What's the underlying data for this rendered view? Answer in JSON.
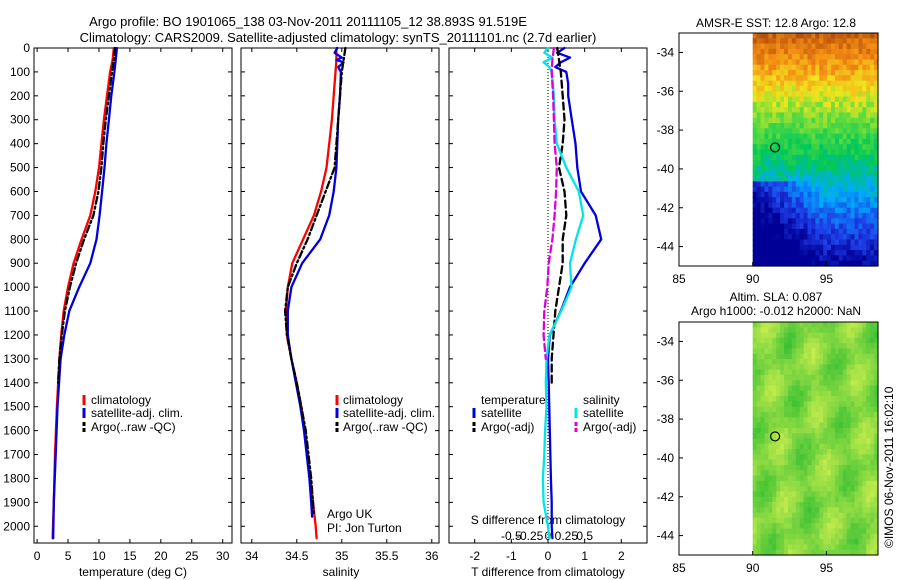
{
  "header": {
    "line1": "Argo profile: BO 1901065_138 03-Nov-2011 20111105_12 38.893S 91.519E",
    "line2": "Climatology: CARS2009. Satellite-adjusted climatology: synTS_20111101.nc (2.7d earlier)"
  },
  "colors": {
    "climatology": "#ff0000",
    "satellite": "#0000dd",
    "argo": "#000000",
    "cyan": "#00e5e5",
    "magenta": "#dd00dd"
  },
  "chart_data": [
    {
      "type": "line",
      "title": "",
      "xlabel": "temperature (deg C)",
      "ylabel": "",
      "xlim": [
        -0.5,
        31.5
      ],
      "ylim": [
        2070,
        0
      ],
      "xticks": [
        0,
        5,
        10,
        15,
        20,
        25,
        30
      ],
      "yticks": [
        0,
        100,
        200,
        300,
        400,
        500,
        600,
        700,
        800,
        900,
        1000,
        1100,
        1200,
        1300,
        1400,
        1500,
        1600,
        1700,
        1800,
        1900,
        2000
      ],
      "legend": [
        "climatology",
        "satellite-adj. clim.",
        "Argo(..raw -QC)"
      ],
      "series": [
        {
          "name": "climatology",
          "style": "solid",
          "color_key": "climatology",
          "depth": [
            0,
            50,
            100,
            200,
            300,
            400,
            500,
            600,
            700,
            800,
            900,
            1000,
            1100,
            1200,
            1300,
            1500,
            1700,
            1900,
            2050
          ],
          "values": [
            12.4,
            12.2,
            11.8,
            11.3,
            10.8,
            10.4,
            10.0,
            9.4,
            8.6,
            7.2,
            5.9,
            5.0,
            4.3,
            3.9,
            3.6,
            3.2,
            2.9,
            2.7,
            2.5
          ]
        },
        {
          "name": "satellite-adj. clim.",
          "style": "solid",
          "color_key": "satellite",
          "depth": [
            0,
            50,
            100,
            200,
            300,
            400,
            500,
            600,
            700,
            800,
            900,
            1000,
            1100,
            1200,
            1300,
            1500,
            1700,
            1900,
            2050
          ],
          "values": [
            12.9,
            12.7,
            12.5,
            12.0,
            11.6,
            11.2,
            10.9,
            10.5,
            10.1,
            9.6,
            8.6,
            6.8,
            5.2,
            4.4,
            3.8,
            3.3,
            3.0,
            2.7,
            2.6
          ]
        },
        {
          "name": "Argo(..raw -QC)",
          "style": "dashdot",
          "color_key": "argo",
          "depth": [
            0,
            50,
            100,
            200,
            300,
            400,
            500,
            600,
            700,
            800,
            900,
            1000,
            1100,
            1200,
            1300,
            1400
          ],
          "values": [
            12.6,
            12.4,
            12.1,
            11.6,
            11.1,
            10.7,
            10.4,
            9.9,
            9.1,
            7.6,
            6.3,
            5.3,
            4.5,
            4.0,
            3.6,
            3.4
          ]
        }
      ]
    },
    {
      "type": "line",
      "title": "",
      "xlabel": "salinity",
      "ylabel": "",
      "xlim": [
        33.88,
        36.08
      ],
      "ylim": [
        2070,
        0
      ],
      "xticks": [
        34,
        34.5,
        35,
        35.5,
        36
      ],
      "legend": [
        "climatology",
        "satellite-adj. clim.",
        "Argo(..raw -QC)"
      ],
      "annotation": [
        "Argo UK",
        "PI: Jon Turton"
      ],
      "series": [
        {
          "name": "climatology",
          "style": "solid",
          "color_key": "climatology",
          "depth": [
            0,
            50,
            100,
            200,
            300,
            400,
            500,
            600,
            700,
            800,
            900,
            1000,
            1100,
            1200,
            1300,
            1400,
            1500,
            1600,
            1700,
            1800,
            1900,
            2000,
            2050
          ],
          "values": [
            34.94,
            34.94,
            34.93,
            34.91,
            34.89,
            34.86,
            34.83,
            34.77,
            34.69,
            34.57,
            34.45,
            34.4,
            34.38,
            34.39,
            34.44,
            34.5,
            34.55,
            34.59,
            34.62,
            34.65,
            34.68,
            34.71,
            34.72
          ]
        },
        {
          "name": "satellite-adj. clim.",
          "style": "solid",
          "color_key": "satellite",
          "depth": [
            0,
            20,
            40,
            50,
            60,
            80,
            100,
            200,
            300,
            400,
            500,
            600,
            700,
            800,
            900,
            1000,
            1100,
            1200,
            1300,
            1400,
            1500,
            1600,
            1700,
            1800,
            1900,
            1960
          ],
          "values": [
            34.95,
            34.92,
            35.0,
            34.94,
            35.02,
            34.96,
            34.99,
            34.98,
            34.96,
            34.95,
            34.94,
            34.91,
            34.86,
            34.76,
            34.56,
            34.44,
            34.4,
            34.4,
            34.44,
            34.49,
            34.54,
            34.58,
            34.61,
            34.64,
            34.66,
            34.67
          ]
        },
        {
          "name": "Argo(..raw -QC)",
          "style": "dashdot",
          "color_key": "argo",
          "depth": [
            0,
            50,
            100,
            200,
            300,
            400,
            500,
            600,
            700,
            800,
            900,
            1000,
            1100,
            1200,
            1300,
            1400,
            1500,
            1600,
            1700,
            1800,
            1900,
            1950
          ],
          "values": [
            35.04,
            35.02,
            35.0,
            34.98,
            34.96,
            34.94,
            34.92,
            34.82,
            34.72,
            34.62,
            34.5,
            34.4,
            34.37,
            34.39,
            34.44,
            34.5,
            34.55,
            34.6,
            34.63,
            34.66,
            34.68,
            34.69
          ]
        }
      ]
    },
    {
      "type": "line",
      "title": "",
      "xlabel": "T difference from climatology",
      "xlabel_top": "S difference from climatology",
      "ylabel": "",
      "xlim": [
        -2.7,
        2.7
      ],
      "ylim": [
        2070,
        0
      ],
      "xticks": [
        -2,
        -1,
        0,
        1,
        2
      ],
      "xtick_labels": [
        "-2",
        "-1",
        "0",
        "1",
        "2"
      ],
      "sticks": [
        -0.5,
        -0.25,
        0,
        0.25,
        0.5
      ],
      "stick_labels": [
        "-0.5",
        "-0.25",
        "0",
        "0.25",
        "0.5"
      ],
      "legend_titles": [
        "temperature",
        "salinity"
      ],
      "legend": [
        "satellite",
        "Argo(-adj)",
        "satellite",
        "Argo(-adj)"
      ],
      "series": [
        {
          "name": "temperature satellite",
          "style": "solid",
          "color_key": "satellite",
          "depth": [
            0,
            20,
            40,
            60,
            80,
            100,
            150,
            200,
            300,
            400,
            500,
            600,
            700,
            800,
            900,
            1000,
            1100,
            1200,
            1300,
            1400,
            1600,
            1800,
            1900,
            2000,
            2050
          ],
          "values": [
            0.45,
            0.25,
            0.6,
            0.35,
            0.2,
            0.5,
            0.55,
            0.55,
            0.65,
            0.75,
            0.8,
            0.9,
            1.3,
            1.45,
            1.0,
            0.6,
            0.35,
            0.05,
            0.0,
            0.02,
            0.05,
            0.08,
            0.1,
            0.1,
            0.12
          ]
        },
        {
          "name": "temperature Argo(-adj)",
          "style": "dashed",
          "color_key": "argo",
          "depth": [
            0,
            50,
            100,
            200,
            300,
            400,
            500,
            600,
            700,
            800,
            900,
            1000,
            1100,
            1200,
            1300,
            1400
          ],
          "values": [
            0.25,
            0.3,
            0.35,
            0.4,
            0.45,
            0.4,
            0.3,
            0.45,
            0.5,
            0.4,
            0.4,
            0.3,
            0.2,
            0.15,
            0.1,
            0.1
          ]
        },
        {
          "name": "salinity satellite",
          "style": "solid",
          "color_key": "cyan",
          "depth": [
            0,
            20,
            40,
            60,
            80,
            100,
            200,
            300,
            400,
            500,
            600,
            700,
            800,
            900,
            1000,
            1100,
            1200,
            1300,
            1400,
            1500,
            1600,
            1700,
            1800,
            1900,
            2000,
            2050
          ],
          "values": [
            0.0,
            -0.05,
            0.06,
            -0.06,
            0.02,
            0.05,
            0.08,
            0.09,
            0.12,
            0.25,
            0.42,
            0.48,
            0.38,
            0.3,
            0.32,
            0.18,
            0.02,
            -0.02,
            -0.03,
            -0.02,
            -0.04,
            -0.05,
            -0.07,
            -0.06,
            0.0,
            0.02
          ]
        },
        {
          "name": "salinity Argo(-adj)",
          "style": "dashed",
          "color_key": "magenta",
          "depth": [
            0,
            50,
            100,
            200,
            300,
            400,
            500,
            600,
            700,
            800,
            900,
            1000,
            1100,
            1200,
            1300
          ],
          "values": [
            0.08,
            0.06,
            0.05,
            0.07,
            0.08,
            0.09,
            0.12,
            0.11,
            0.09,
            0.06,
            0.01,
            -0.01,
            -0.05,
            -0.06,
            -0.03
          ]
        }
      ]
    },
    {
      "type": "heatmap",
      "title": "AMSR-E SST: 12.8 Argo: 12.8",
      "xlabel": "",
      "ylabel": "",
      "xlim": [
        85,
        98.5
      ],
      "ylim": [
        -45,
        -33
      ],
      "xticks": [
        85,
        90,
        95
      ],
      "yticks": [
        -34,
        -36,
        -38,
        -40,
        -42,
        -44
      ],
      "data_region_x": [
        90,
        98.5
      ],
      "marker": {
        "lon": 91.519,
        "lat": -38.893
      }
    },
    {
      "type": "heatmap",
      "title": "Altim. SLA: 0.087",
      "subtitle": "Argo h1000: -0.012 h2000: NaN",
      "xlabel": "",
      "ylabel": "",
      "xlim": [
        85,
        98.5
      ],
      "ylim": [
        -45,
        -33
      ],
      "xticks": [
        85,
        90,
        95
      ],
      "yticks": [
        -34,
        -36,
        -38,
        -40,
        -42,
        -44
      ],
      "data_region_x": [
        90,
        98.5
      ],
      "marker": {
        "lon": 91.519,
        "lat": -38.893
      }
    }
  ],
  "footer": {
    "credit": "©IMOS 06-Nov-2011 16:02:10"
  }
}
